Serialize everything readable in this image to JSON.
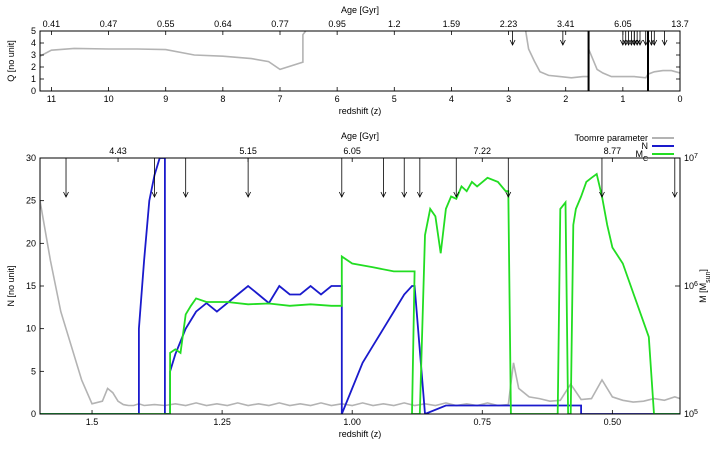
{
  "chart_data": [
    {
      "type": "line",
      "panel": "top",
      "xlabel": "redshift (z)",
      "ylabel": "Q [no unit]",
      "x2label": "Age [Gyr]",
      "x_reversed": true,
      "xlim": [
        11.2,
        0
      ],
      "ylim": [
        0,
        5
      ],
      "x_ticks": [
        "11",
        "10",
        "9",
        "8",
        "7",
        "6",
        "5",
        "4",
        "3",
        "2",
        "1",
        "0"
      ],
      "y_ticks": [
        "0",
        "1",
        "2",
        "3",
        "4",
        "5"
      ],
      "age_ticks": [
        {
          "z": 11,
          "label": "0.41"
        },
        {
          "z": 10,
          "label": "0.47"
        },
        {
          "z": 9,
          "label": "0.55"
        },
        {
          "z": 8,
          "label": "0.64"
        },
        {
          "z": 7,
          "label": "0.77"
        },
        {
          "z": 6,
          "label": "0.95"
        },
        {
          "z": 5,
          "label": "1.2"
        },
        {
          "z": 4,
          "label": "1.59"
        },
        {
          "z": 3,
          "label": "2.23"
        },
        {
          "z": 2,
          "label": "3.41"
        },
        {
          "z": 1,
          "label": "6.05"
        },
        {
          "z": 0,
          "label": "13.7"
        }
      ],
      "vertical_lines_z": [
        1.6,
        0.56
      ],
      "arrows_z": [
        2.93,
        2.05,
        1.0,
        0.95,
        0.9,
        0.85,
        0.8,
        0.8,
        0.7,
        0.6,
        0.75,
        0.27,
        0.5,
        0.45
      ],
      "series": [
        {
          "color": "#b3b3b3",
          "x": [
            11.2,
            11.0,
            10.6,
            10.0,
            9.5,
            9.0,
            8.5,
            8.0,
            7.5,
            7.2,
            7.0,
            6.6,
            6.6,
            6.55
          ],
          "y": [
            2.9,
            3.4,
            3.55,
            3.5,
            3.5,
            3.45,
            3.0,
            2.9,
            2.7,
            2.45,
            1.8,
            2.4,
            4.7,
            5.0
          ]
        },
        {
          "color": "#b3b3b3",
          "x": [
            2.7,
            2.65,
            2.55,
            2.45,
            2.3,
            2.1,
            1.9,
            1.7,
            1.6
          ],
          "y": [
            5.0,
            3.5,
            2.5,
            1.6,
            1.3,
            1.2,
            1.1,
            1.2,
            1.2
          ]
        },
        {
          "color": "#b3b3b3",
          "x": [
            1.6,
            1.45,
            1.35,
            1.2,
            1.0,
            0.8,
            0.6,
            0.56,
            0.45,
            0.3,
            0.15,
            0.0
          ],
          "y": [
            3.5,
            1.8,
            1.5,
            1.2,
            1.2,
            1.2,
            1.1,
            1.4,
            1.6,
            1.7,
            1.7,
            1.5
          ]
        }
      ]
    },
    {
      "type": "line",
      "panel": "bottom",
      "xlabel": "redshift (z)",
      "ylabel": "N [no unit]",
      "y2label": "M [M_sun]",
      "x2label": "Age [Gyr]",
      "x_reversed": true,
      "xlim": [
        1.6,
        0.37
      ],
      "ylim": [
        0,
        30
      ],
      "y2lim": [
        100000,
        10000000
      ],
      "y2_scale": "log",
      "x_ticks": [
        "1.5",
        "1.25",
        "1.00",
        "0.75",
        "0.50"
      ],
      "y_ticks": [
        "0",
        "5",
        "10",
        "15",
        "20",
        "25",
        "30"
      ],
      "y2_ticks": [
        "10^5",
        "10^6",
        "10^7"
      ],
      "age_ticks": [
        {
          "z": 1.45,
          "label": "4.43"
        },
        {
          "z": 1.2,
          "label": "5.15"
        },
        {
          "z": 1.0,
          "label": "6.05"
        },
        {
          "z": 0.75,
          "label": "7.22"
        },
        {
          "z": 0.5,
          "label": "8.77"
        }
      ],
      "arrows_z": [
        1.55,
        1.38,
        1.32,
        1.2,
        1.02,
        0.94,
        0.9,
        0.87,
        0.8,
        0.7,
        0.52,
        0.38
      ],
      "legend": {
        "position": "top-right"
      },
      "series": [
        {
          "name": "Toomre parameter",
          "color": "#b3b3b3",
          "axis": "y",
          "x": [
            1.6,
            1.58,
            1.56,
            1.54,
            1.52,
            1.5,
            1.48,
            1.47,
            1.46,
            1.45,
            1.44,
            1.43,
            1.42,
            1.41,
            1.4,
            1.38,
            1.36,
            1.34,
            1.32,
            1.3,
            1.28,
            1.26,
            1.24,
            1.22,
            1.2,
            1.18,
            1.16,
            1.14,
            1.12,
            1.1,
            1.08,
            1.06,
            1.04,
            1.02,
            1.0,
            0.98,
            0.96,
            0.94,
            0.92,
            0.9,
            0.88,
            0.86,
            0.84,
            0.82,
            0.8,
            0.78,
            0.76,
            0.74,
            0.72,
            0.7,
            0.69,
            0.68,
            0.66,
            0.64,
            0.62,
            0.6,
            0.58,
            0.56,
            0.54,
            0.52,
            0.5,
            0.48,
            0.46,
            0.44,
            0.42,
            0.4,
            0.38,
            0.37
          ],
          "y": [
            25,
            18,
            12,
            8,
            4,
            1.2,
            1.5,
            3.0,
            2.5,
            1.5,
            1.1,
            1.0,
            1.0,
            1.2,
            1.0,
            1.1,
            1.0,
            1.2,
            1.0,
            1.3,
            1.0,
            1.2,
            1.0,
            1.3,
            1.0,
            1.2,
            1.0,
            1.3,
            1.0,
            1.2,
            1.0,
            1.3,
            1.0,
            1.2,
            1.0,
            1.3,
            1.0,
            1.2,
            1.0,
            1.3,
            1.0,
            1.2,
            1.0,
            1.3,
            1.0,
            1.2,
            1.0,
            1.3,
            1.0,
            1.1,
            6.0,
            3.0,
            2.0,
            1.8,
            1.5,
            1.6,
            3.5,
            1.7,
            1.8,
            4.0,
            2.0,
            1.6,
            1.4,
            1.5,
            1.8,
            1.6,
            2.0,
            1.8
          ]
        },
        {
          "name": "N",
          "color": "#1a1acc",
          "axis": "y",
          "x": [
            1.6,
            1.45,
            1.41,
            1.41,
            1.4,
            1.39,
            1.38,
            1.37,
            1.36,
            1.36,
            1.35,
            1.35,
            1.34,
            1.32,
            1.3,
            1.28,
            1.26,
            1.24,
            1.22,
            1.2,
            1.18,
            1.16,
            1.14,
            1.12,
            1.1,
            1.08,
            1.06,
            1.04,
            1.025,
            1.02,
            1.02,
            1.0,
            0.98,
            0.96,
            0.94,
            0.92,
            0.9,
            0.885,
            0.88,
            0.86,
            0.82,
            0.75,
            0.7,
            0.695,
            0.62,
            0.6,
            0.56,
            0.56,
            0.54,
            0.45,
            0.43,
            0.43,
            0.37
          ],
          "y": [
            0,
            0,
            0,
            10,
            18,
            25,
            28,
            30,
            30,
            0,
            0,
            5,
            7,
            10,
            12,
            13,
            12,
            13,
            14,
            15,
            14,
            13,
            15,
            14,
            14,
            15,
            14,
            15,
            15,
            15,
            0,
            3,
            6,
            8,
            10,
            12,
            14,
            15,
            15,
            0,
            1,
            1,
            1,
            1,
            1,
            1,
            1,
            0,
            0,
            0,
            0,
            0,
            0
          ]
        },
        {
          "name": "M_C",
          "color": "#22dd22",
          "axis": "y2",
          "x": [
            1.6,
            1.35,
            1.35,
            1.34,
            1.33,
            1.32,
            1.31,
            1.3,
            1.28,
            1.24,
            1.2,
            1.16,
            1.12,
            1.08,
            1.04,
            1.02,
            1.02,
            1.0,
            0.96,
            0.92,
            0.88,
            0.885,
            0.87,
            0.86,
            0.85,
            0.84,
            0.83,
            0.82,
            0.81,
            0.8,
            0.79,
            0.78,
            0.77,
            0.76,
            0.74,
            0.72,
            0.705,
            0.7,
            0.695,
            0.68,
            0.62,
            0.605,
            0.6,
            0.59,
            0.585,
            0.58,
            0.575,
            0.57,
            0.56,
            0.55,
            0.54,
            0.53,
            0.52,
            0.51,
            0.5,
            0.48,
            0.43,
            0.42,
            0.4,
            0.37
          ],
          "y": [
            100000,
            100000,
            300000,
            320000,
            300000,
            600000,
            700000,
            800000,
            750000,
            750000,
            720000,
            730000,
            700000,
            720000,
            700000,
            700000,
            1700000,
            1500000,
            1400000,
            1300000,
            1300000,
            100000,
            100000,
            2500000,
            4000000,
            3500000,
            1800000,
            4000000,
            5000000,
            4800000,
            6000000,
            5500000,
            6500000,
            6000000,
            7000000,
            6500000,
            5500000,
            5500000,
            100000,
            100000,
            100000,
            100000,
            4000000,
            4500000,
            100000,
            100000,
            3000000,
            4000000,
            5000000,
            6500000,
            7000000,
            7500000,
            5000000,
            3000000,
            2000000,
            1500000,
            400000,
            100000,
            100000,
            100000
          ]
        }
      ]
    }
  ]
}
